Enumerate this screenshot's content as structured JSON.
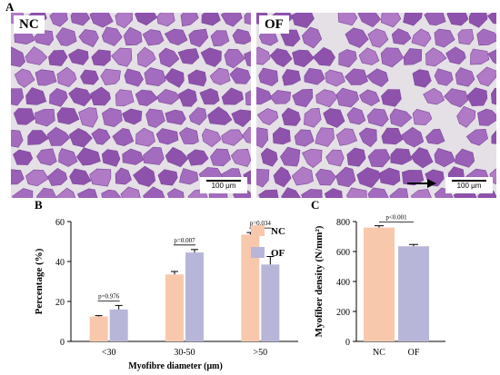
{
  "panels": {
    "A": "A",
    "B": "B",
    "C": "C"
  },
  "images": [
    {
      "tag": "NC",
      "scale_bar": "100 μm"
    },
    {
      "tag": "OF",
      "scale_bar": "100 μm"
    }
  ],
  "colors": {
    "nc": "#f8c8ad",
    "of": "#b8b6d8",
    "tissue": "#8e52ad",
    "tissue_light": "#b07ac6",
    "gap": "#e4e0e6"
  },
  "chart_data": [
    {
      "type": "bar",
      "categories": [
        "<30",
        "30-50",
        ">50"
      ],
      "series": [
        {
          "name": "NC",
          "values": [
            12.5,
            33.5,
            53.5
          ],
          "errors": [
            0.4,
            1.5,
            1.0
          ]
        },
        {
          "name": "OF",
          "values": [
            16.0,
            44.5,
            38.5
          ],
          "errors": [
            2.0,
            1.5,
            4.0
          ]
        }
      ],
      "p_values": [
        "p=0.976",
        "p=0.007",
        "p=0.034"
      ],
      "xlabel": "Myofibre diameter (μm)",
      "ylabel": "Percentage (%)",
      "ylim": [
        0,
        60
      ],
      "yticks": [
        "0",
        "20",
        "40",
        "60"
      ],
      "legend": "top-right"
    },
    {
      "type": "bar",
      "categories": [
        "NC",
        "OF"
      ],
      "values": [
        760,
        635
      ],
      "errors": [
        12,
        12
      ],
      "p_values": [
        "p<0.001"
      ],
      "ylabel": "Myofiber density (N/mm²)",
      "ylim": [
        0,
        800
      ],
      "yticks": [
        "0",
        "200",
        "400",
        "600",
        "800"
      ]
    }
  ]
}
